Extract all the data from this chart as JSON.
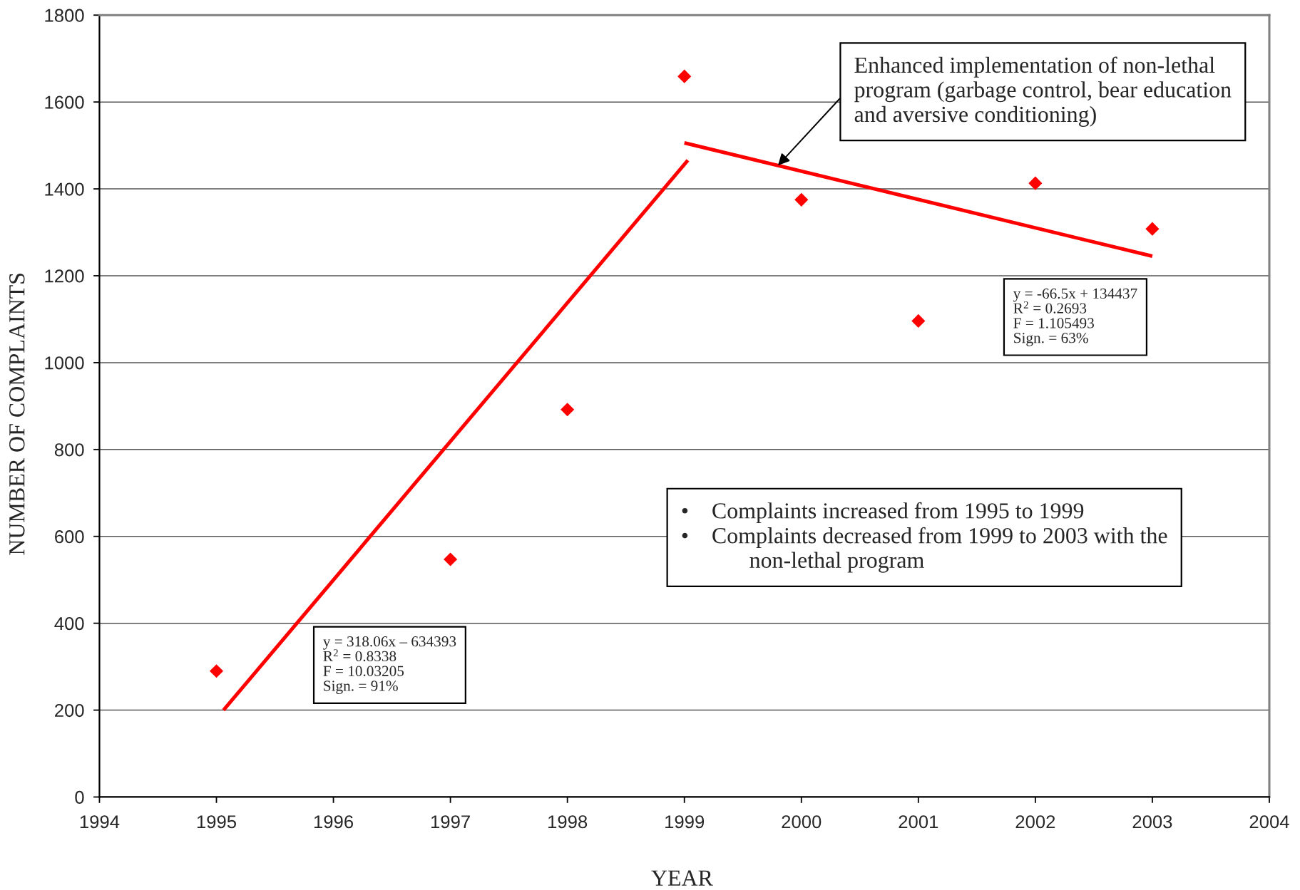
{
  "chart_data": {
    "type": "scatter",
    "xlabel": "YEAR",
    "ylabel": "NUMBER OF COMPLAINTS",
    "xlim": [
      1994,
      2004
    ],
    "xticks": [
      1994,
      1995,
      1996,
      1997,
      1998,
      1999,
      2000,
      2001,
      2002,
      2003,
      2004
    ],
    "ylim": [
      0,
      1800
    ],
    "yticks": [
      0,
      200,
      400,
      600,
      800,
      1000,
      1200,
      1400,
      1600,
      1800
    ],
    "grid": "y",
    "marker": "diamond",
    "series": [
      {
        "color": "#ff0000",
        "x": [
          1995,
          1997,
          1998,
          1999,
          2000,
          2001,
          2002,
          2003
        ],
        "values": [
          290,
          547,
          892,
          1659,
          1375,
          1096,
          1413,
          1308
        ]
      },
      {
        "type": "line",
        "color": "#ff0000",
        "marker": "none",
        "x": [
          1995.06,
          1999.03
        ],
        "values": [
          200,
          1466
        ]
      },
      {
        "type": "line",
        "color": "#ff0000",
        "marker": "none",
        "x": [
          1999.0,
          2003.0
        ],
        "values": [
          1506,
          1245
        ]
      }
    ],
    "annotations": [
      {
        "text": "Enhanced implementation of non-lethal\nprogram (garbage control, bear education\nand aversive conditioning)",
        "x": 1999.8,
        "y": 1454
      },
      "y = 318.06x – 634393\nR$^{2}$ = 0.8338\nF = 10.03205\nSign. = 91%",
      "y = -66.5x + 134437\nR$^{2}$ = 0.2693\nF = 1.105493\nSign. = 63%",
      "•    Complaints increased from 1995 to 1999\n•    Complaints decreased from 1999 to 2003 with the\n            non-lethal program"
    ]
  }
}
